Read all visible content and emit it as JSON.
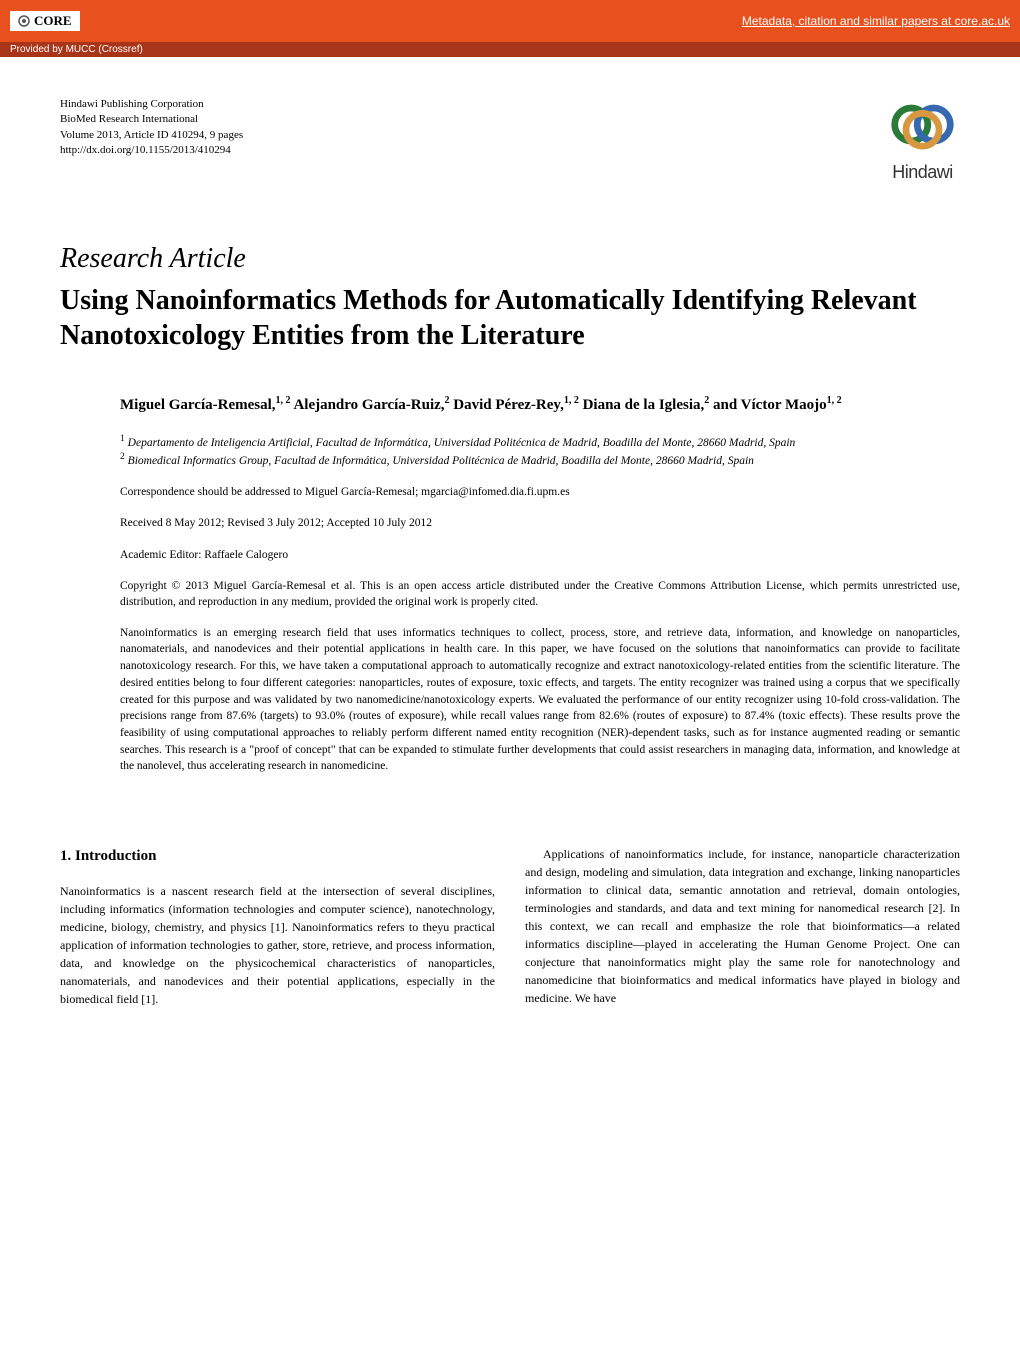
{
  "banner": {
    "logo_text": "CORE",
    "link_text": "Metadata, citation and similar papers at core.ac.uk",
    "provider_text": "Provided by MUCC (Crossref)"
  },
  "pub_info": {
    "publisher": "Hindawi Publishing Corporation",
    "journal": "BioMed Research International",
    "volume": "Volume 2013, Article ID 410294, 9 pages",
    "doi": "http://dx.doi.org/10.1155/2013/410294"
  },
  "hindawi": {
    "text": "Hindawi",
    "ring_colors": [
      "#2a7a3a",
      "#3669b0",
      "#d89840"
    ]
  },
  "article": {
    "type": "Research Article",
    "title": "Using Nanoinformatics Methods for Automatically Identifying Relevant Nanotoxicology Entities from the Literature"
  },
  "authors_html": "Miguel García-Remesal,<sup>1, 2</sup> Alejandro García-Ruiz,<sup>2</sup> David Pérez-Rey,<sup>1, 2</sup> Diana de la Iglesia,<sup>2</sup> and Víctor Maojo<sup>1, 2</sup>",
  "affiliations_html": "<sup>1</sup> Departamento de Inteligencia Artificial, Facultad de Informática, Universidad Politécnica de Madrid, Boadilla del Monte, 28660 Madrid, Spain<br><sup>2</sup> Biomedical Informatics Group, Facultad de Informática, Universidad Politécnica de Madrid, Boadilla del Monte, 28660 Madrid, Spain",
  "correspondence": "Correspondence should be addressed to Miguel García-Remesal; mgarcia@infomed.dia.fi.upm.es",
  "dates": "Received 8 May 2012; Revised 3 July 2012; Accepted 10 July 2012",
  "editor": "Academic Editor: Raffaele Calogero",
  "copyright": "Copyright © 2013 Miguel García-Remesal et al. This is an open access article distributed under the Creative Commons Attribution License, which permits unrestricted use, distribution, and reproduction in any medium, provided the original work is properly cited.",
  "abstract": "Nanoinformatics is an emerging research field that uses informatics techniques to collect, process, store, and retrieve data, information, and knowledge on nanoparticles, nanomaterials, and nanodevices and their potential applications in health care. In this paper, we have focused on the solutions that nanoinformatics can provide to facilitate nanotoxicology research. For this, we have taken a computational approach to automatically recognize and extract nanotoxicology-related entities from the scientific literature. The desired entities belong to four different categories: nanoparticles, routes of exposure, toxic effects, and targets. The entity recognizer was trained using a corpus that we specifically created for this purpose and was validated by two nanomedicine/nanotoxicology experts. We evaluated the performance of our entity recognizer using 10-fold cross-validation. The precisions range from 87.6% (targets) to 93.0% (routes of exposure), while recall values range from 82.6% (routes of exposure) to 87.4% (toxic effects). These results prove the feasibility of using computational approaches to reliably perform different named entity recognition (NER)-dependent tasks, such as for instance augmented reading or semantic searches. This research is a \"proof of concept\" that can be expanded to stimulate further developments that could assist researchers in managing data, information, and knowledge at the nanolevel, thus accelerating research in nanomedicine.",
  "section1": {
    "heading": "1. Introduction",
    "col1": "Nanoinformatics is a nascent research field at the intersection of several disciplines, including informatics (information technologies and computer science), nanotechnology, medicine, biology, chemistry, and physics [1]. Nanoinformatics refers to theyu practical application of information technologies to gather, store, retrieve, and process information, data, and knowledge on the physicochemical characteristics of nanoparticles, nanomaterials, and nanodevices and their potential applications, especially in the biomedical field [1].",
    "col2": "Applications of nanoinformatics include, for instance, nanoparticle characterization and design, modeling and simulation, data integration and exchange, linking nanoparticles information to clinical data, semantic annotation and retrieval, domain ontologies, terminologies and standards, and data and text mining for nanomedical research [2]. In this context, we can recall and emphasize the role that bioinformatics—a related informatics discipline—played in accelerating the Human Genome Project. One can conjecture that nanoinformatics might play the same role for nanotechnology and nanomedicine that bioinformatics and medical informatics have played in biology and medicine. We have"
  },
  "colors": {
    "banner_bg": "#e8501e",
    "provider_bg": "#a8351a"
  }
}
